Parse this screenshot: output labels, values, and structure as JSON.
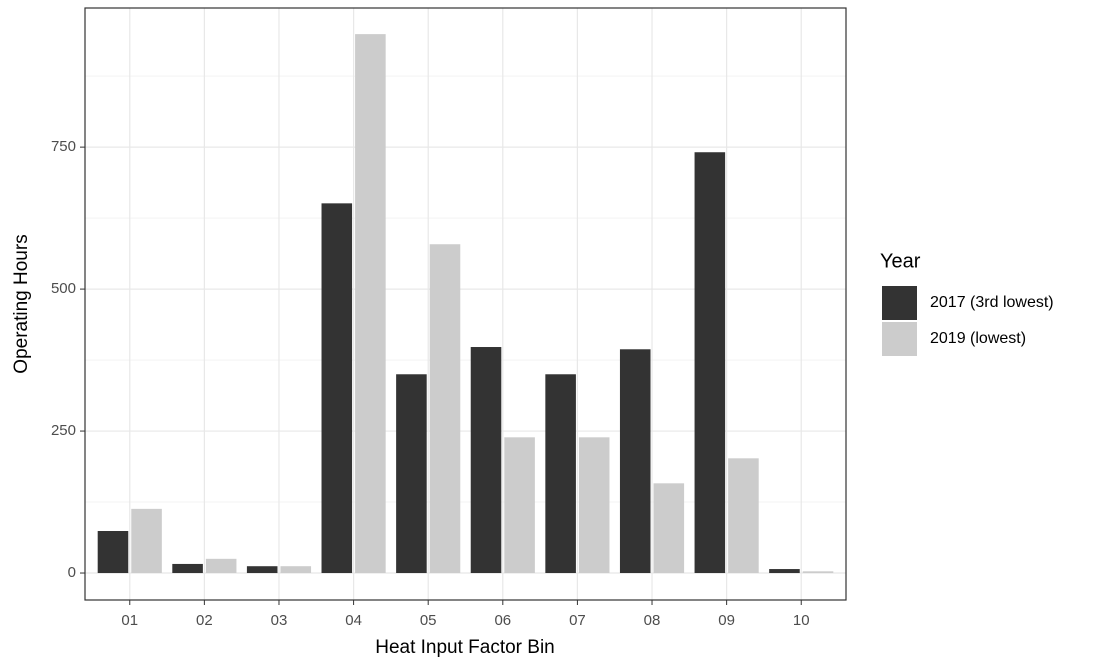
{
  "chart_data": {
    "type": "bar",
    "x_label": "Heat Input Factor Bin",
    "y_label": "Operating Hours",
    "legend_title": "Year",
    "legend_position": "right",
    "categories": [
      "01",
      "02",
      "03",
      "04",
      "05",
      "06",
      "07",
      "08",
      "09",
      "10"
    ],
    "series": [
      {
        "name": "2017 (3rd lowest)",
        "color": "#333333",
        "values": [
          74,
          16,
          12,
          651,
          350,
          398,
          350,
          394,
          741,
          7
        ]
      },
      {
        "name": "2019 (lowest)",
        "color": "#cccccc",
        "values": [
          113,
          25,
          12,
          949,
          579,
          239,
          239,
          158,
          202,
          3
        ]
      }
    ],
    "ylim": [
      -47.5,
      995
    ],
    "yticks": [
      0,
      250,
      500,
      750
    ],
    "minor_yticks": [
      125,
      375,
      625,
      875
    ],
    "grid": true
  }
}
